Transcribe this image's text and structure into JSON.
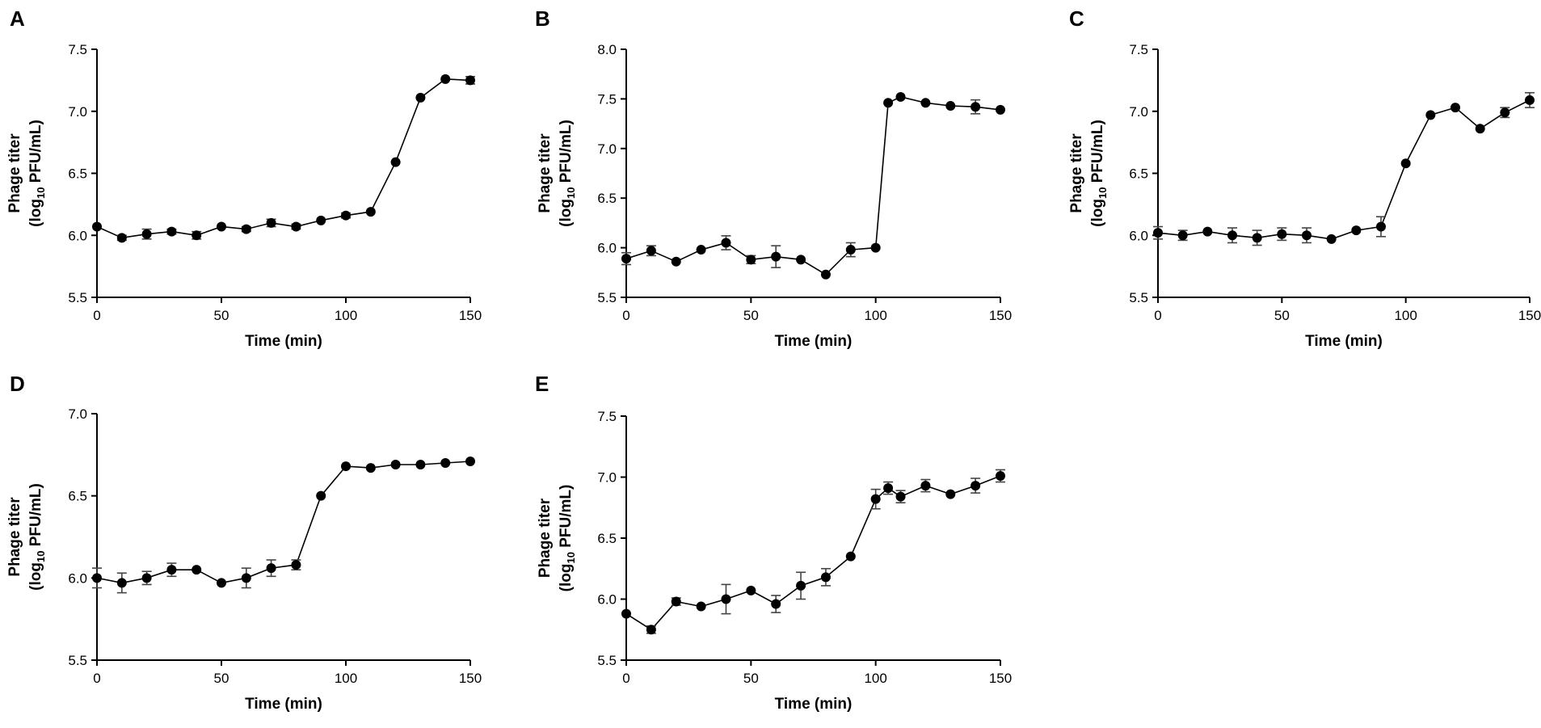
{
  "figure": {
    "panel_letters": [
      "A",
      "B",
      "C",
      "D",
      "E"
    ],
    "xlabel": "Time (min)",
    "ylabel_line1": "Phage titer",
    "ylabel_line2_pre": "(log",
    "ylabel_line2_sub": "10",
    "ylabel_line2_post": " PFU/mL)"
  },
  "chart_data": [
    {
      "panel": "A",
      "type": "line",
      "title": "",
      "xlabel": "Time (min)",
      "ylabel": "Phage titer (log10 PFU/mL)",
      "xlim": [
        0,
        150
      ],
      "ylim": [
        5.5,
        7.5
      ],
      "xticks": [
        0,
        50,
        100,
        150
      ],
      "xtick_labels": [
        "0",
        "50",
        "100",
        "150"
      ],
      "yticks": [
        5.5,
        6.0,
        6.5,
        7.0,
        7.5
      ],
      "ytick_labels": [
        "5.5",
        "6.0",
        "6.5",
        "7.0",
        "7.5"
      ],
      "x": [
        0,
        10,
        20,
        30,
        40,
        50,
        60,
        70,
        80,
        90,
        100,
        110,
        120,
        130,
        140,
        150
      ],
      "y": [
        6.07,
        5.98,
        6.01,
        6.03,
        6.0,
        6.07,
        6.05,
        6.1,
        6.07,
        6.12,
        6.16,
        6.19,
        6.59,
        7.11,
        7.26,
        7.25
      ],
      "err": [
        0.0,
        0.02,
        0.04,
        0.02,
        0.03,
        0.0,
        0.02,
        0.03,
        0.02,
        0.0,
        0.02,
        0.0,
        0.0,
        0.0,
        0.0,
        0.03
      ]
    },
    {
      "panel": "B",
      "type": "line",
      "title": "",
      "xlabel": "Time (min)",
      "ylabel": "Phage titer (log10 PFU/mL)",
      "xlim": [
        0,
        150
      ],
      "ylim": [
        5.5,
        8.0
      ],
      "xticks": [
        0,
        50,
        100,
        150
      ],
      "xtick_labels": [
        "0",
        "50",
        "100",
        "150"
      ],
      "yticks": [
        5.5,
        6.0,
        6.5,
        7.0,
        7.5,
        8.0
      ],
      "ytick_labels": [
        "5.5",
        "6.0",
        "6.5",
        "7.0",
        "7.5",
        "8.0"
      ],
      "x": [
        0,
        10,
        20,
        30,
        40,
        50,
        60,
        70,
        80,
        90,
        100,
        105,
        110,
        120,
        130,
        140,
        150
      ],
      "y": [
        5.89,
        5.97,
        5.86,
        5.98,
        6.05,
        5.88,
        5.91,
        5.88,
        5.73,
        5.98,
        6.0,
        7.46,
        7.52,
        7.46,
        7.43,
        7.42,
        7.39
      ],
      "err": [
        0.06,
        0.05,
        0.0,
        0.0,
        0.07,
        0.04,
        0.11,
        0.0,
        0.0,
        0.07,
        0.0,
        0.0,
        0.0,
        0.0,
        0.0,
        0.07,
        0.0
      ]
    },
    {
      "panel": "C",
      "type": "line",
      "title": "",
      "xlabel": "Time (min)",
      "ylabel": "Phage titer (log10 PFU/mL)",
      "xlim": [
        0,
        150
      ],
      "ylim": [
        5.5,
        7.5
      ],
      "xticks": [
        0,
        50,
        100,
        150
      ],
      "xtick_labels": [
        "0",
        "50",
        "100",
        "150"
      ],
      "yticks": [
        5.5,
        6.0,
        6.5,
        7.0,
        7.5
      ],
      "ytick_labels": [
        "5.5",
        "6.0",
        "6.5",
        "7.0",
        "7.5"
      ],
      "x": [
        0,
        10,
        20,
        30,
        40,
        50,
        60,
        70,
        80,
        90,
        100,
        110,
        120,
        130,
        140,
        150
      ],
      "y": [
        6.02,
        6.0,
        6.03,
        6.0,
        5.98,
        6.01,
        6.0,
        5.97,
        6.04,
        6.07,
        6.58,
        6.97,
        7.03,
        6.86,
        6.99,
        7.09
      ],
      "err": [
        0.05,
        0.04,
        0.0,
        0.06,
        0.06,
        0.05,
        0.06,
        0.0,
        0.0,
        0.08,
        0.0,
        0.0,
        0.0,
        0.0,
        0.04,
        0.06
      ]
    },
    {
      "panel": "D",
      "type": "line",
      "title": "",
      "xlabel": "Time (min)",
      "ylabel": "Phage titer (log10 PFU/mL)",
      "xlim": [
        0,
        150
      ],
      "ylim": [
        5.5,
        7.0
      ],
      "xticks": [
        0,
        50,
        100,
        150
      ],
      "xtick_labels": [
        "0",
        "50",
        "100",
        "150"
      ],
      "yticks": [
        5.5,
        6.0,
        6.5,
        7.0
      ],
      "ytick_labels": [
        "5.5",
        "6.0",
        "6.5",
        "7.0"
      ],
      "x": [
        0,
        10,
        20,
        30,
        40,
        50,
        60,
        70,
        80,
        90,
        100,
        110,
        120,
        130,
        140,
        150
      ],
      "y": [
        6.0,
        5.97,
        6.0,
        6.05,
        6.05,
        5.97,
        6.0,
        6.06,
        6.08,
        6.5,
        6.68,
        6.67,
        6.69,
        6.69,
        6.7,
        6.71
      ],
      "err": [
        0.06,
        0.06,
        0.04,
        0.04,
        0.0,
        0.0,
        0.06,
        0.05,
        0.03,
        0.0,
        0.0,
        0.0,
        0.0,
        0.0,
        0.0,
        0.0
      ]
    },
    {
      "panel": "E",
      "type": "line",
      "title": "",
      "xlabel": "Time (min)",
      "ylabel": "Phage titer (log10 PFU/mL)",
      "xlim": [
        0,
        150
      ],
      "ylim": [
        5.5,
        7.5
      ],
      "xticks": [
        0,
        50,
        100,
        150
      ],
      "xtick_labels": [
        "0",
        "50",
        "100",
        "150"
      ],
      "yticks": [
        5.5,
        6.0,
        6.5,
        7.0,
        7.5
      ],
      "ytick_labels": [
        "5.5",
        "6.0",
        "6.5",
        "7.0",
        "7.5"
      ],
      "x": [
        0,
        10,
        20,
        30,
        40,
        50,
        60,
        70,
        80,
        90,
        100,
        105,
        110,
        120,
        130,
        140,
        150
      ],
      "y": [
        5.88,
        5.75,
        5.98,
        5.94,
        6.0,
        6.07,
        5.96,
        6.11,
        6.18,
        6.35,
        6.82,
        6.91,
        6.84,
        6.93,
        6.86,
        6.93,
        7.01
      ],
      "err": [
        0.0,
        0.03,
        0.03,
        0.0,
        0.12,
        0.0,
        0.07,
        0.11,
        0.07,
        0.0,
        0.08,
        0.05,
        0.05,
        0.05,
        0.0,
        0.06,
        0.05
      ]
    }
  ]
}
